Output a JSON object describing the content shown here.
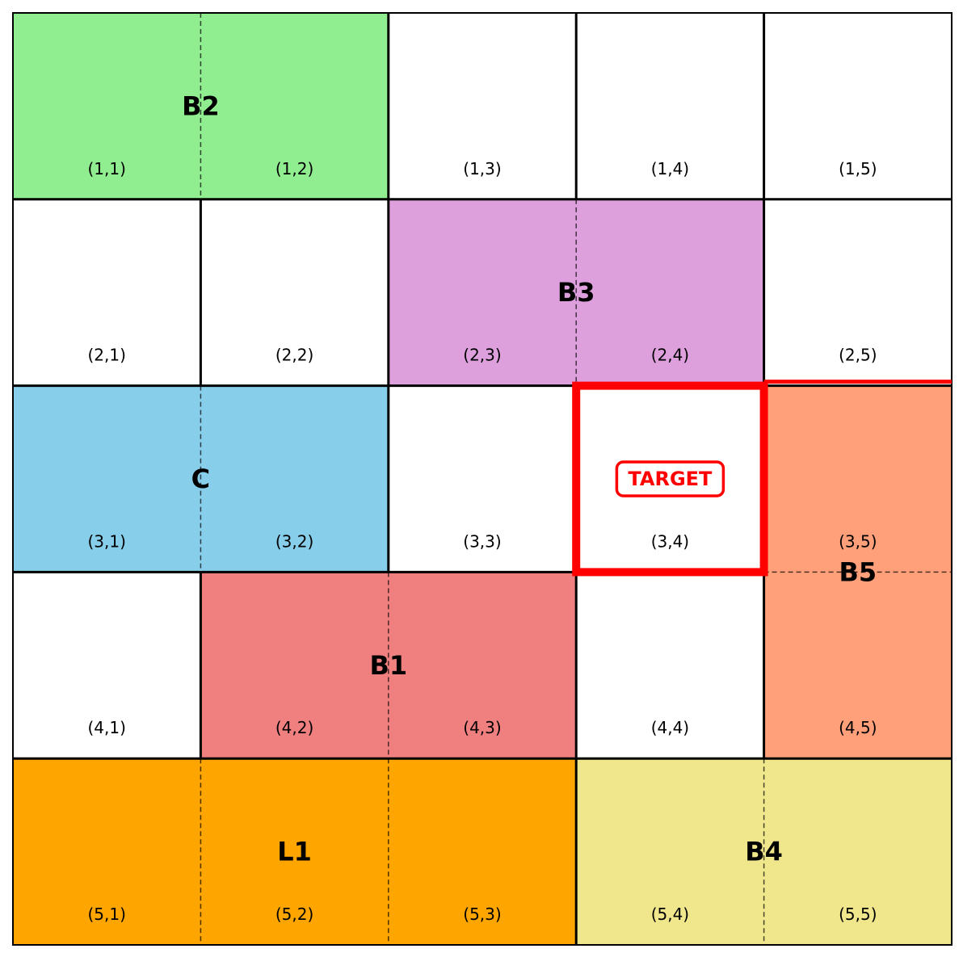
{
  "grid": {
    "rows": 5,
    "cols": 5,
    "cell_labels": [
      [
        "(1,1)",
        "(1,2)",
        "(1,3)",
        "(1,4)",
        "(1,5)"
      ],
      [
        "(2,1)",
        "(2,2)",
        "(2,3)",
        "(2,4)",
        "(2,5)"
      ],
      [
        "(3,1)",
        "(3,2)",
        "(3,3)",
        "(3,4)",
        "(3,5)"
      ],
      [
        "(4,1)",
        "(4,2)",
        "(4,3)",
        "(4,4)",
        "(4,5)"
      ],
      [
        "(5,1)",
        "(5,2)",
        "(5,3)",
        "(5,4)",
        "(5,5)"
      ]
    ]
  },
  "blocks": [
    {
      "id": "b2",
      "label": "B2",
      "row": 1,
      "col": 1,
      "row_span": 1,
      "col_span": 2,
      "orientation": "horizontal",
      "color": "#90ee90"
    },
    {
      "id": "b3",
      "label": "B3",
      "row": 2,
      "col": 3,
      "row_span": 1,
      "col_span": 2,
      "orientation": "horizontal",
      "color": "#dda0dd"
    },
    {
      "id": "c",
      "label": "C",
      "row": 3,
      "col": 1,
      "row_span": 1,
      "col_span": 2,
      "orientation": "horizontal",
      "color": "#87ceeb"
    },
    {
      "id": "b5",
      "label": "B5",
      "row": 3,
      "col": 5,
      "row_span": 2,
      "col_span": 1,
      "orientation": "vertical",
      "color": "#ffa07a"
    },
    {
      "id": "b1",
      "label": "B1",
      "row": 4,
      "col": 2,
      "row_span": 1,
      "col_span": 2,
      "orientation": "horizontal",
      "color": "#f08080"
    },
    {
      "id": "l1",
      "label": "L1",
      "row": 5,
      "col": 1,
      "row_span": 1,
      "col_span": 3,
      "orientation": "horizontal",
      "color": "#ffa500"
    },
    {
      "id": "b4",
      "label": "B4",
      "row": 5,
      "col": 4,
      "row_span": 1,
      "col_span": 2,
      "orientation": "horizontal",
      "color": "#f0e68c"
    }
  ],
  "target": {
    "label": "TARGET",
    "row": 3,
    "col": 4,
    "color": "#ff0000"
  }
}
